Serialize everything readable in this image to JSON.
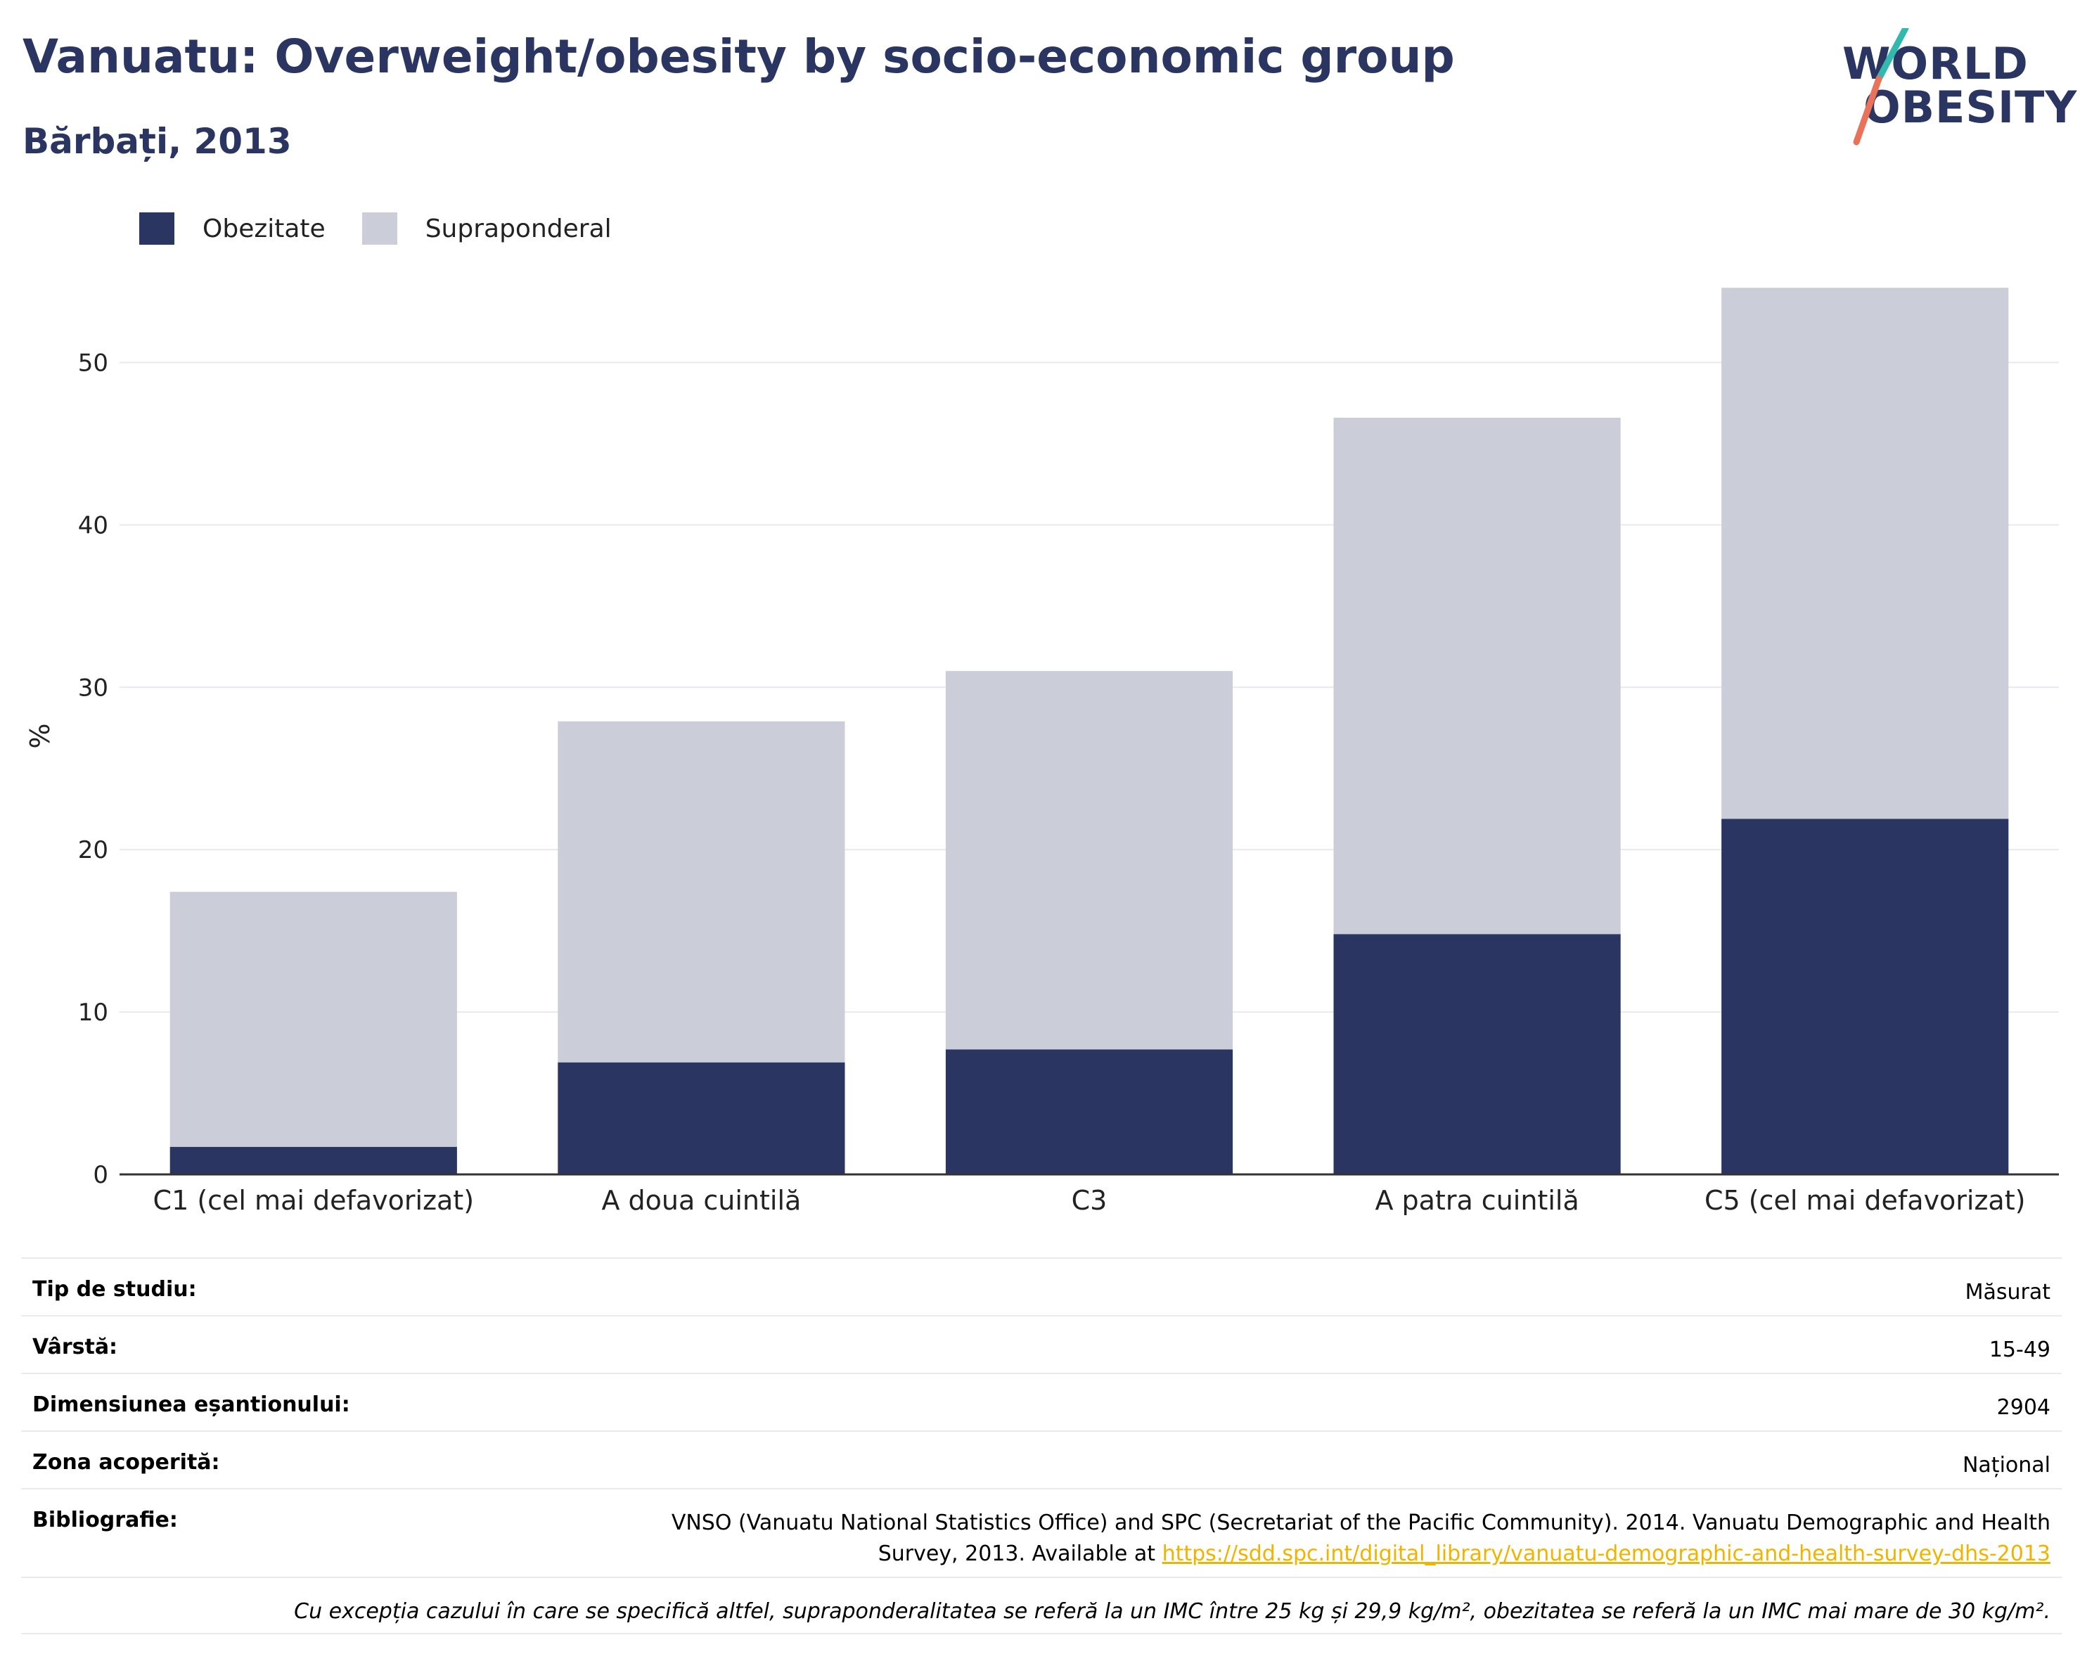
{
  "header": {
    "title": "Vanuatu: Overweight/obesity by socio-economic group",
    "subtitle": "Bărbați, 2013"
  },
  "logo": {
    "line1": "WORLD",
    "line2": "OBESITY"
  },
  "colors": {
    "obesity": "#2a3561",
    "overweight": "#cbcdd8",
    "accent_teal": "#33b8b0",
    "accent_red": "#e8735a"
  },
  "chart_data": {
    "type": "bar",
    "stacked": true,
    "categories": [
      "C1 (cel mai defavorizat)",
      "A doua cuintilă",
      "C3",
      "A patra cuintilă",
      "C5 (cel mai defavorizat)"
    ],
    "series": [
      {
        "name": "Obezitate",
        "values": [
          1.7,
          6.9,
          7.7,
          14.8,
          21.9
        ]
      },
      {
        "name": "Supraponderal",
        "values": [
          15.7,
          21.0,
          23.3,
          31.8,
          32.7
        ]
      }
    ],
    "ylabel": "%",
    "ylim": [
      0,
      55
    ],
    "yticks": [
      0,
      10,
      20,
      30,
      40,
      50
    ],
    "legend": "top-left",
    "grid": true
  },
  "info": {
    "study_type": {
      "label": "Tip de studiu:",
      "value": "Măsurat"
    },
    "age": {
      "label": "Vârstă:",
      "value": "15-49"
    },
    "sample_size": {
      "label": "Dimensiunea eșantionului:",
      "value": "2904"
    },
    "coverage": {
      "label": "Zona acoperită:",
      "value": "Național"
    },
    "bibliography": {
      "label": "Bibliografie:",
      "line1": "VNSO (Vanuatu National Statistics Office) and SPC (Secretariat of the Pacific Community). 2014. Vanuatu Demographic and Health",
      "line2_prefix": "Survey, 2013. Available at ",
      "link": "https://sdd.spc.int/digital_library/vanuatu-demographic-and-health-survey-dhs-2013"
    },
    "note": "Cu excepția cazului în care se specifică altfel, supraponderalitatea se referă la un IMC între 25 kg și 29,9 kg/m², obezitatea se referă la un IMC mai mare de 30 kg/m²."
  }
}
